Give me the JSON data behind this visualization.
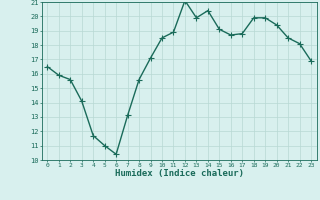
{
  "x": [
    0,
    1,
    2,
    3,
    4,
    5,
    6,
    7,
    8,
    9,
    10,
    11,
    12,
    13,
    14,
    15,
    16,
    17,
    18,
    19,
    20,
    21,
    22,
    23
  ],
  "y": [
    16.5,
    15.9,
    15.6,
    14.1,
    11.7,
    11.0,
    10.4,
    13.1,
    15.6,
    17.1,
    18.5,
    18.9,
    21.1,
    19.9,
    20.4,
    19.1,
    18.7,
    18.8,
    19.9,
    19.9,
    19.4,
    18.5,
    18.1,
    16.9
  ],
  "line_color": "#1a6b5a",
  "marker": "+",
  "bg_color": "#d8f0ee",
  "grid_color": "#b8d8d4",
  "xlabel": "Humidex (Indice chaleur)",
  "xlim": [
    -0.5,
    23.5
  ],
  "ylim": [
    10,
    21
  ],
  "yticks": [
    10,
    11,
    12,
    13,
    14,
    15,
    16,
    17,
    18,
    19,
    20,
    21
  ],
  "xticks": [
    0,
    1,
    2,
    3,
    4,
    5,
    6,
    7,
    8,
    9,
    10,
    11,
    12,
    13,
    14,
    15,
    16,
    17,
    18,
    19,
    20,
    21,
    22,
    23
  ],
  "xlabel_color": "#1a6b5a",
  "tick_color": "#1a6b5a",
  "axis_color": "#1a6b5a",
  "line_width": 1.0,
  "marker_size": 4
}
